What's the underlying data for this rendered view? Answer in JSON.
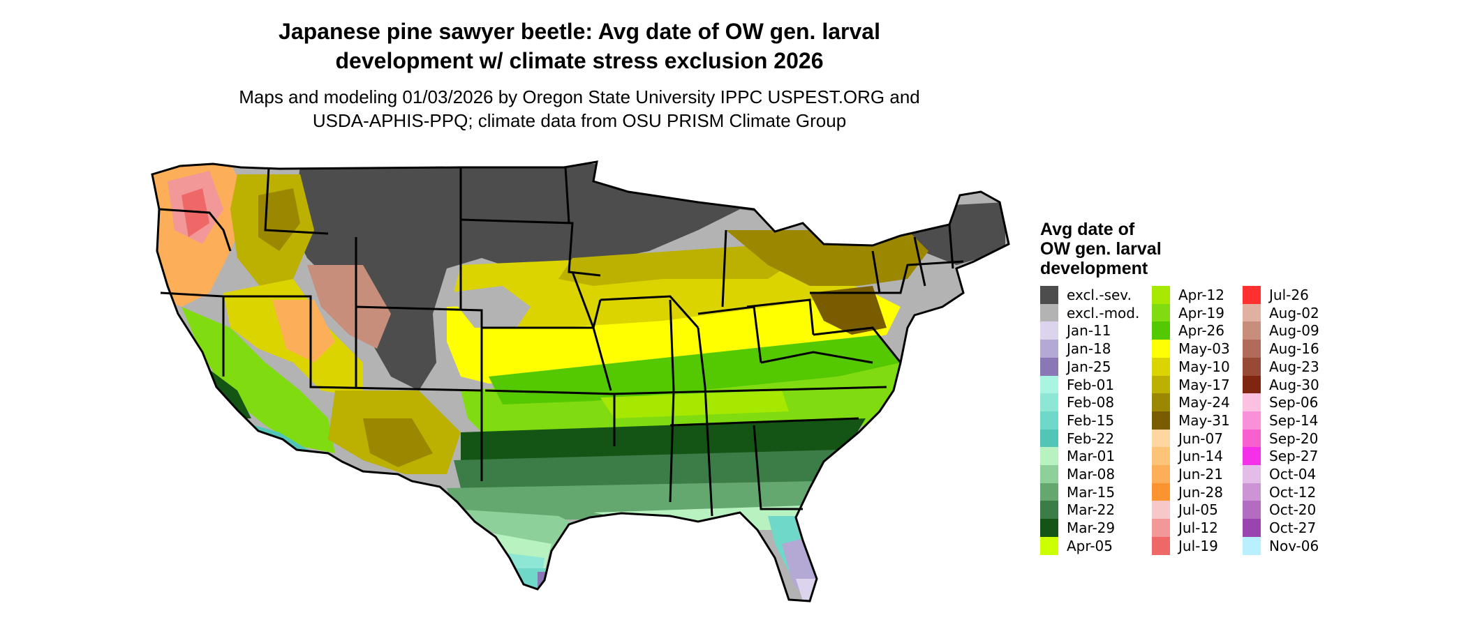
{
  "title": {
    "line1": "Japanese pine sawyer beetle: Avg date of OW gen. larval",
    "line2": "development w/ climate stress exclusion 2026"
  },
  "subtitle": {
    "line1": "Maps and modeling 01/03/2026 by Oregon State University IPPC USPEST.ORG and",
    "line2": "USDA-APHIS-PPQ; climate data from OSU PRISM Climate Group"
  },
  "legend": {
    "title_lines": [
      "Avg date of",
      "OW gen. larval",
      "development"
    ],
    "items": [
      {
        "label": "excl.-sev.",
        "color": "#4d4d4d"
      },
      {
        "label": "excl.-mod.",
        "color": "#b3b3b3"
      },
      {
        "label": "Jan-11",
        "color": "#dcd4ec"
      },
      {
        "label": "Jan-18",
        "color": "#b4a8d4"
      },
      {
        "label": "Jan-25",
        "color": "#8a78b6"
      },
      {
        "label": "Feb-01",
        "color": "#aaf4e2"
      },
      {
        "label": "Feb-08",
        "color": "#8ee6d4"
      },
      {
        "label": "Feb-15",
        "color": "#70d8c8"
      },
      {
        "label": "Feb-22",
        "color": "#52c6b6"
      },
      {
        "label": "Mar-01",
        "color": "#b8f2c0"
      },
      {
        "label": "Mar-08",
        "color": "#8ed09a"
      },
      {
        "label": "Mar-15",
        "color": "#64a870"
      },
      {
        "label": "Mar-22",
        "color": "#3c7c46"
      },
      {
        "label": "Mar-29",
        "color": "#145414"
      },
      {
        "label": "Apr-05",
        "color": "#ccff00"
      },
      {
        "label": "Apr-12",
        "color": "#a6e800"
      },
      {
        "label": "Apr-19",
        "color": "#80dc10"
      },
      {
        "label": "Apr-26",
        "color": "#54c800"
      },
      {
        "label": "May-03",
        "color": "#ffff00"
      },
      {
        "label": "May-10",
        "color": "#dcd400"
      },
      {
        "label": "May-17",
        "color": "#bcb000"
      },
      {
        "label": "May-24",
        "color": "#9c8800"
      },
      {
        "label": "May-31",
        "color": "#7a5c00"
      },
      {
        "label": "Jun-07",
        "color": "#fed6a0"
      },
      {
        "label": "Jun-14",
        "color": "#fdc478"
      },
      {
        "label": "Jun-21",
        "color": "#fcae58"
      },
      {
        "label": "Jun-28",
        "color": "#fb9430"
      },
      {
        "label": "Jul-05",
        "color": "#f6c8c8"
      },
      {
        "label": "Jul-12",
        "color": "#f29898"
      },
      {
        "label": "Jul-19",
        "color": "#ee6868"
      },
      {
        "label": "Jul-26",
        "color": "#ff3030"
      },
      {
        "label": "Aug-02",
        "color": "#e0b0a0"
      },
      {
        "label": "Aug-09",
        "color": "#c88e7c"
      },
      {
        "label": "Aug-16",
        "color": "#b06c58"
      },
      {
        "label": "Aug-23",
        "color": "#984a36"
      },
      {
        "label": "Aug-30",
        "color": "#802610"
      },
      {
        "label": "Sep-06",
        "color": "#fcc0e0"
      },
      {
        "label": "Sep-14",
        "color": "#fa90d8"
      },
      {
        "label": "Sep-20",
        "color": "#f860d0"
      },
      {
        "label": "Sep-27",
        "color": "#f430e8"
      },
      {
        "label": "Oct-04",
        "color": "#e4bce8"
      },
      {
        "label": "Oct-12",
        "color": "#cc94d4"
      },
      {
        "label": "Oct-20",
        "color": "#b46cc0"
      },
      {
        "label": "Oct-27",
        "color": "#9a44b0"
      },
      {
        "label": "Nov-06",
        "color": "#b8f0ff"
      }
    ]
  }
}
